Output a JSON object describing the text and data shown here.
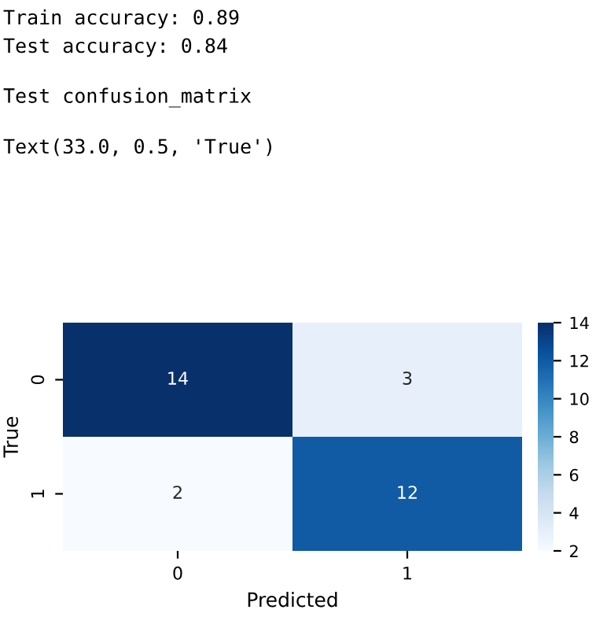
{
  "chart_data": {
    "type": "heatmap",
    "xlabel": "Predicted",
    "ylabel": "True",
    "annotations": [
      "Train accuracy: 0.89",
      "Test accuracy: 0.84",
      "Test confusion_matrix",
      "Text(33.0, 0.5, 'True')"
    ],
    "categories": [
      "0",
      "1"
    ],
    "y_categories": [
      "0",
      "1"
    ],
    "cells": [
      [
        14,
        3
      ],
      [
        2,
        12
      ]
    ],
    "clim": [
      2,
      14
    ],
    "cticks": [
      2,
      4,
      6,
      8,
      10,
      12,
      14
    ],
    "data_labels": true
  }
}
